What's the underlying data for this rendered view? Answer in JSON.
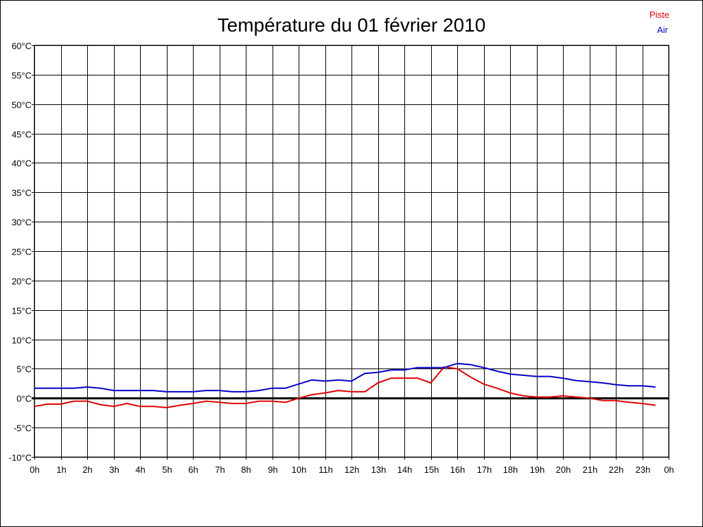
{
  "chart_data": {
    "type": "line",
    "title": "Température du 01 février 2010",
    "xlabel": "",
    "ylabel": "",
    "x_tick_labels": [
      "0h",
      "1h",
      "2h",
      "3h",
      "4h",
      "5h",
      "6h",
      "7h",
      "8h",
      "9h",
      "10h",
      "11h",
      "12h",
      "13h",
      "14h",
      "15h",
      "16h",
      "17h",
      "18h",
      "19h",
      "20h",
      "21h",
      "22h",
      "23h",
      "0h"
    ],
    "y_tick_labels": [
      "-10°C",
      "-5°C",
      "0°C",
      "5°C",
      "10°C",
      "15°C",
      "20°C",
      "25°C",
      "30°C",
      "35°C",
      "40°C",
      "45°C",
      "50°C",
      "55°C",
      "60°C"
    ],
    "xlim": [
      0,
      24
    ],
    "ylim": [
      -10,
      60
    ],
    "grid": true,
    "legend_position": "top-right",
    "x": [
      0,
      0.5,
      1,
      1.5,
      2,
      2.5,
      3,
      3.5,
      4,
      4.5,
      5,
      5.5,
      6,
      6.5,
      7,
      7.5,
      8,
      8.5,
      9,
      9.5,
      10,
      10.5,
      11,
      11.5,
      12,
      12.5,
      13,
      13.5,
      14,
      14.5,
      15,
      15.5,
      16,
      16.5,
      17,
      17.5,
      18,
      18.5,
      19,
      19.5,
      20,
      20.5,
      21,
      21.5,
      22,
      22.5,
      23,
      23.5
    ],
    "series": [
      {
        "name": "Piste",
        "color": "#e00000",
        "values": [
          -1.4,
          -1.0,
          -1.0,
          -0.5,
          -0.5,
          -1.1,
          -1.4,
          -0.9,
          -1.4,
          -1.4,
          -1.6,
          -1.2,
          -0.9,
          -0.5,
          -0.7,
          -0.9,
          -0.9,
          -0.5,
          -0.5,
          -0.7,
          0.0,
          0.6,
          0.9,
          1.3,
          1.1,
          1.1,
          2.6,
          3.4,
          3.4,
          3.4,
          2.6,
          5.3,
          5.0,
          3.6,
          2.4,
          1.7,
          0.9,
          0.4,
          0.2,
          0.2,
          0.4,
          0.2,
          0.0,
          -0.4,
          -0.4,
          -0.7,
          -0.9,
          -1.2
        ]
      },
      {
        "name": "Air",
        "color": "#0000c8",
        "values": [
          1.7,
          1.7,
          1.7,
          1.7,
          1.9,
          1.7,
          1.3,
          1.3,
          1.3,
          1.3,
          1.1,
          1.1,
          1.1,
          1.3,
          1.3,
          1.1,
          1.1,
          1.3,
          1.7,
          1.7,
          2.4,
          3.1,
          2.9,
          3.1,
          2.9,
          4.2,
          4.4,
          4.8,
          4.8,
          5.2,
          5.2,
          5.2,
          5.9,
          5.7,
          5.2,
          4.6,
          4.1,
          3.9,
          3.7,
          3.7,
          3.4,
          3.0,
          2.8,
          2.6,
          2.3,
          2.1,
          2.1,
          1.9
        ]
      }
    ]
  }
}
